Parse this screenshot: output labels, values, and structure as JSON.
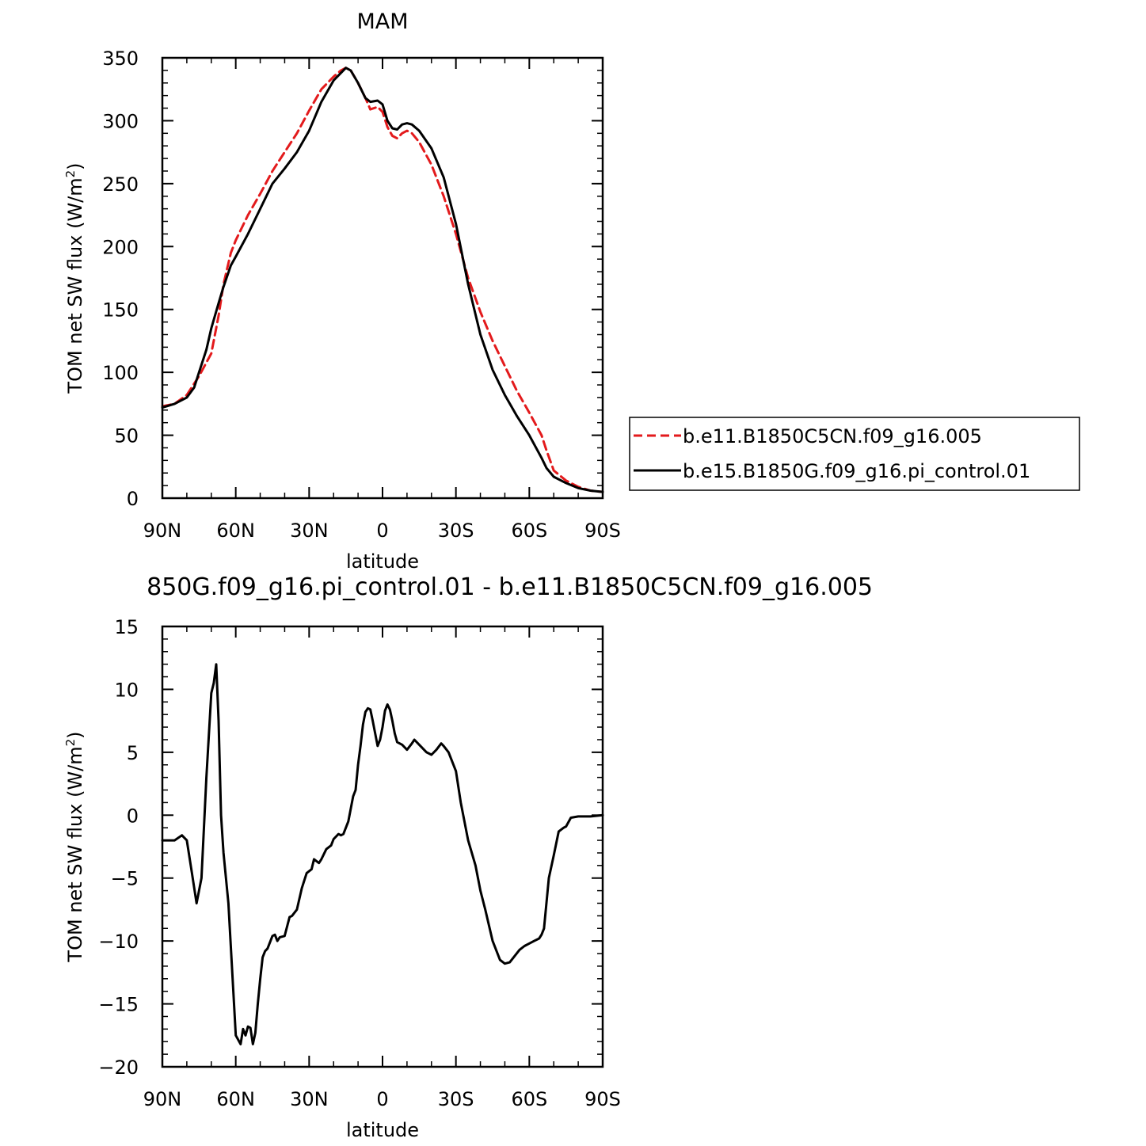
{
  "colors": {
    "series_1": "#e31a1c",
    "series_2": "#000000",
    "axis": "#000000"
  },
  "chart_data": [
    {
      "type": "line",
      "title": "MAM",
      "xlabel": "latitude",
      "ylabel_main": "TOM net SW flux (W/m",
      "ylabel_sup": "2",
      "ylabel_tail": ")",
      "xlim": [
        90,
        -90
      ],
      "ylim": [
        0,
        350
      ],
      "xticks": [
        {
          "value": 90,
          "label": "90N"
        },
        {
          "value": 60,
          "label": "60N"
        },
        {
          "value": 30,
          "label": "30N"
        },
        {
          "value": 0,
          "label": "0"
        },
        {
          "value": -30,
          "label": "30S"
        },
        {
          "value": -60,
          "label": "60S"
        },
        {
          "value": -90,
          "label": "90S"
        }
      ],
      "yticks": [
        0,
        50,
        100,
        150,
        200,
        250,
        300,
        350
      ],
      "grid": false,
      "legend": "right",
      "series": [
        {
          "name": "b.e11.B1850C5CN.f09_g16.005",
          "style": "dashed",
          "x": [
            90,
            85,
            80,
            75,
            70,
            67,
            65,
            62,
            60,
            55,
            50,
            45,
            40,
            35,
            30,
            25,
            20,
            17,
            15,
            13,
            10,
            7,
            5,
            2,
            0,
            -2,
            -4,
            -6,
            -8,
            -10,
            -12,
            -15,
            -20,
            -25,
            -30,
            -35,
            -40,
            -45,
            -50,
            -55,
            -60,
            -65,
            -67,
            -70,
            -75,
            -80,
            -85,
            -90
          ],
          "y": [
            73,
            75,
            82,
            97,
            115,
            145,
            170,
            195,
            205,
            225,
            242,
            260,
            275,
            290,
            308,
            325,
            335,
            340,
            342,
            340,
            330,
            318,
            309,
            311,
            307,
            295,
            288,
            286,
            290,
            292,
            290,
            283,
            265,
            240,
            210,
            175,
            148,
            125,
            105,
            85,
            68,
            50,
            38,
            22,
            14,
            9,
            6,
            5
          ]
        },
        {
          "name": "b.e15.B1850G.f09_g16.pi_control.01",
          "style": "solid",
          "x": [
            90,
            85,
            80,
            77,
            75,
            72,
            70,
            67,
            65,
            62,
            60,
            55,
            50,
            45,
            40,
            35,
            30,
            25,
            20,
            17,
            15,
            13,
            10,
            7,
            5,
            2,
            0,
            -2,
            -4,
            -6,
            -8,
            -10,
            -12,
            -15,
            -20,
            -25,
            -30,
            -35,
            -40,
            -45,
            -50,
            -55,
            -60,
            -65,
            -67,
            -70,
            -75,
            -80,
            -85,
            -90
          ],
          "y": [
            72,
            75,
            80,
            88,
            100,
            118,
            135,
            155,
            168,
            185,
            192,
            210,
            230,
            250,
            262,
            275,
            292,
            315,
            332,
            338,
            342,
            340,
            330,
            318,
            315,
            316,
            313,
            300,
            294,
            293,
            297,
            298,
            297,
            292,
            278,
            255,
            218,
            170,
            130,
            102,
            82,
            65,
            50,
            32,
            24,
            17,
            12,
            8,
            6,
            5
          ]
        }
      ]
    },
    {
      "type": "line",
      "title": "850G.f09_g16.pi_control.01 - b.e11.B1850C5CN.f09_g16.005",
      "xlabel": "latitude",
      "ylabel_main": "TOM net SW flux (W/m",
      "ylabel_sup": "2",
      "ylabel_tail": ")",
      "xlim": [
        90,
        -90
      ],
      "ylim": [
        -20,
        15
      ],
      "xticks": [
        {
          "value": 90,
          "label": "90N"
        },
        {
          "value": 60,
          "label": "60N"
        },
        {
          "value": 30,
          "label": "30N"
        },
        {
          "value": 0,
          "label": "0"
        },
        {
          "value": -30,
          "label": "30S"
        },
        {
          "value": -60,
          "label": "60S"
        },
        {
          "value": -90,
          "label": "90S"
        }
      ],
      "yticks": [
        {
          "value": 15,
          "label": "15"
        },
        {
          "value": 10,
          "label": "10"
        },
        {
          "value": 5,
          "label": "5"
        },
        {
          "value": 0,
          "label": "0"
        },
        {
          "value": -5,
          "label": "−5"
        },
        {
          "value": -10,
          "label": "−10"
        },
        {
          "value": -15,
          "label": "−15"
        },
        {
          "value": -20,
          "label": "−20"
        }
      ],
      "grid": false,
      "series": [
        {
          "name": "",
          "style": "solid",
          "x": [
            90,
            85,
            82,
            80,
            78,
            76,
            74,
            72,
            70,
            69,
            68,
            67,
            66,
            65,
            63,
            61,
            60,
            58,
            57,
            56,
            55,
            54,
            53,
            52,
            51,
            50,
            49,
            48,
            47,
            45,
            44,
            43,
            42,
            40,
            38,
            37,
            35,
            33,
            31,
            29,
            28,
            26,
            25,
            23,
            21,
            20,
            18,
            17,
            16,
            14,
            12,
            11,
            10,
            9,
            8,
            7,
            6,
            5,
            4,
            2,
            1,
            0,
            -1,
            -2,
            -3,
            -4,
            -5,
            -6,
            -8,
            -10,
            -12,
            -13,
            -15,
            -18,
            -20,
            -22,
            -24,
            -25,
            -27,
            -30,
            -32,
            -35,
            -38,
            -40,
            -42,
            -45,
            -48,
            -50,
            -52,
            -54,
            -56,
            -58,
            -60,
            -62,
            -64,
            -65,
            -66,
            -68,
            -70,
            -72,
            -74,
            -75,
            -77,
            -80,
            -85,
            -90
          ],
          "y": [
            -2,
            -2,
            -1.6,
            -2,
            -4.5,
            -7,
            -5,
            3,
            9.7,
            10.5,
            12,
            7.5,
            0,
            -3,
            -7,
            -14,
            -17.5,
            -18.2,
            -17,
            -17.5,
            -16.8,
            -16.9,
            -18.2,
            -17.3,
            -15,
            -13,
            -11.3,
            -10.8,
            -10.6,
            -9.6,
            -9.5,
            -10,
            -9.7,
            -9.6,
            -8.1,
            -8,
            -7.5,
            -5.8,
            -4.6,
            -4.3,
            -3.5,
            -3.8,
            -3.5,
            -2.7,
            -2.4,
            -1.9,
            -1.5,
            -1.6,
            -1.5,
            -0.5,
            1.5,
            2,
            4,
            5.5,
            7.2,
            8.2,
            8.5,
            8.4,
            7.5,
            5.5,
            6,
            7,
            8.3,
            8.8,
            8.4,
            7.5,
            6.5,
            5.8,
            5.6,
            5.2,
            5.7,
            6,
            5.6,
            5,
            4.8,
            5.2,
            5.7,
            5.5,
            5,
            3.5,
            1,
            -2,
            -4,
            -6,
            -7.5,
            -10,
            -11.5,
            -11.8,
            -11.7,
            -11.2,
            -10.7,
            -10.4,
            -10.2,
            -10,
            -9.8,
            -9.5,
            -9,
            -5,
            -3.2,
            -1.3,
            -1,
            -0.9,
            -0.2,
            -0.1,
            -0.1,
            0
          ]
        }
      ]
    }
  ]
}
